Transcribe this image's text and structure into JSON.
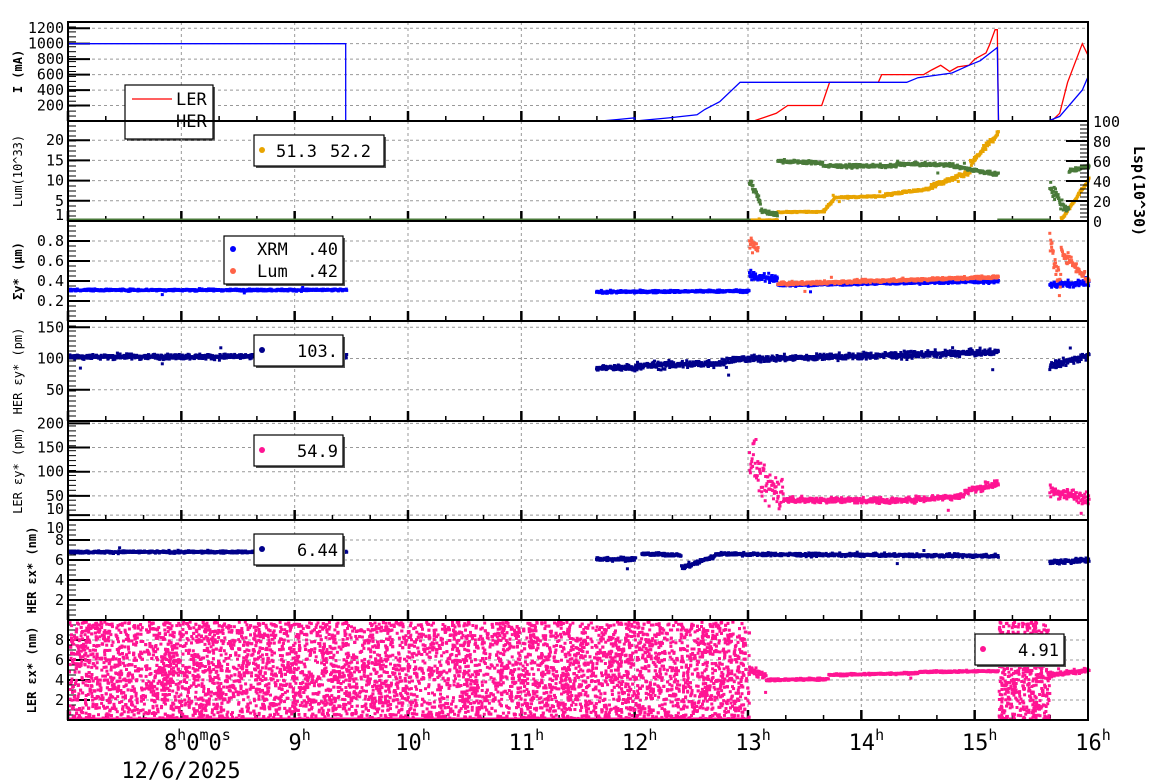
{
  "chart_data": [
    {
      "type": "line",
      "ylabel": "I (mA)",
      "ylim": [
        0,
        1280
      ],
      "yticks": [
        "200",
        "400",
        "600",
        "800",
        "1000",
        "1200"
      ],
      "legend": [
        {
          "name": "LER",
          "color": "#ff0000"
        },
        {
          "name": "HER",
          "color": "#0000ff"
        }
      ],
      "series": [
        {
          "name": "LER",
          "color": "#ff0000",
          "points": [
            [
              7,
              0
            ],
            [
              13.05,
              0
            ],
            [
              13.25,
              100
            ],
            [
              13.35,
              200
            ],
            [
              13.65,
              200
            ],
            [
              13.72,
              500
            ],
            [
              14.15,
              500
            ],
            [
              14.18,
              600
            ],
            [
              14.55,
              600
            ],
            [
              14.62,
              660
            ],
            [
              14.7,
              720
            ],
            [
              14.78,
              640
            ],
            [
              14.85,
              700
            ],
            [
              14.95,
              720
            ],
            [
              15.0,
              800
            ],
            [
              15.1,
              880
            ],
            [
              15.13,
              980
            ],
            [
              15.18,
              1180
            ],
            [
              15.2,
              1180
            ],
            [
              15.21,
              0
            ],
            [
              15.68,
              0
            ],
            [
              15.75,
              100
            ],
            [
              15.82,
              500
            ],
            [
              15.95,
              1000
            ],
            [
              16,
              850
            ]
          ]
        },
        {
          "name": "HER",
          "color": "#0000ff",
          "points": [
            [
              7,
              1000
            ],
            [
              9.45,
              1000
            ],
            [
              9.45,
              0
            ],
            [
              11.7,
              0
            ],
            [
              11.85,
              20
            ],
            [
              12.0,
              40
            ],
            [
              12.0,
              0
            ],
            [
              12.3,
              40
            ],
            [
              12.55,
              80
            ],
            [
              12.62,
              150
            ],
            [
              12.75,
              250
            ],
            [
              12.93,
              500
            ],
            [
              14.4,
              500
            ],
            [
              14.5,
              560
            ],
            [
              14.8,
              620
            ],
            [
              14.95,
              720
            ],
            [
              15.05,
              780
            ],
            [
              15.2,
              950
            ],
            [
              15.21,
              0
            ],
            [
              15.65,
              0
            ],
            [
              15.75,
              60
            ],
            [
              15.95,
              400
            ],
            [
              16,
              570
            ]
          ]
        }
      ]
    },
    {
      "type": "scatter",
      "ylabel": "Lum(10^33)",
      "ylim": [
        0,
        24.75
      ],
      "yticks": [
        "1",
        "5",
        "10",
        "15",
        "20"
      ],
      "y2label": "Lsp(10^30)",
      "y2lim": [
        0,
        100
      ],
      "y2ticks": [
        "0",
        "20",
        "40",
        "60",
        "80",
        "100"
      ],
      "legend_values": [
        "51.3",
        "52.2"
      ],
      "legend_color": "#e8a400",
      "series": [
        {
          "axis": "left",
          "color": "#e8a400",
          "segments": [
            [
              13.0,
              13.25,
              0.2,
              0.2,
              0.1
            ],
            [
              13.25,
              13.65,
              2.2,
              2.3,
              0.15
            ],
            [
              13.65,
              13.75,
              2.3,
              5.5,
              0.3
            ],
            [
              13.75,
              14.2,
              5.8,
              6.2,
              0.2
            ],
            [
              14.2,
              14.6,
              6.5,
              8,
              0.3
            ],
            [
              14.6,
              14.95,
              8.5,
              12,
              0.6
            ],
            [
              14.95,
              15.2,
              14,
              22,
              0.8
            ],
            [
              15.75,
              16,
              0.3,
              10.5,
              0.4
            ]
          ]
        },
        {
          "axis": "right",
          "color": "#4a7a3a",
          "segments": [
            [
              7,
              13,
              0,
              0,
              0
            ],
            [
              13.0,
              13.1,
              40,
              20,
              5
            ],
            [
              13.1,
              13.25,
              10,
              6,
              2
            ],
            [
              13.25,
              13.65,
              60,
              58,
              1.5
            ],
            [
              13.65,
              14.3,
              55,
              55,
              1.5
            ],
            [
              14.3,
              14.8,
              57,
              56,
              1.5
            ],
            [
              14.8,
              15.2,
              55,
              46,
              1.5
            ],
            [
              15.2,
              15.65,
              0,
              0,
              0
            ],
            [
              15.65,
              15.78,
              35,
              15,
              8
            ],
            [
              15.78,
              15.82,
              12,
              12,
              3
            ],
            [
              15.82,
              16,
              50,
              55,
              2
            ]
          ]
        }
      ]
    },
    {
      "type": "scatter",
      "ylabel": "Σy* (μm)",
      "ylim": [
        0,
        1.0
      ],
      "yticks": [
        "0.2",
        "0.4",
        "0.6",
        "0.8"
      ],
      "legend": [
        {
          "name": "XRM",
          "value": ".40",
          "color": "#0000ff"
        },
        {
          "name": "Lum",
          "value": ".42",
          "color": "#ff6347"
        }
      ],
      "series": [
        {
          "name": "XRM",
          "color": "#0000ff",
          "segments": [
            [
              7,
              9.45,
              0.31,
              0.31,
              0.01
            ],
            [
              11.65,
              13.0,
              0.29,
              0.3,
              0.012
            ],
            [
              13.0,
              13.25,
              0.45,
              0.42,
              0.05
            ],
            [
              13.25,
              15.2,
              0.36,
              0.4,
              0.015
            ],
            [
              15.65,
              16,
              0.36,
              0.38,
              0.03
            ]
          ]
        },
        {
          "name": "Lum",
          "color": "#ff6347",
          "segments": [
            [
              13.0,
              13.08,
              0.8,
              0.7,
              0.08
            ],
            [
              13.25,
              15.2,
              0.37,
              0.44,
              0.015
            ],
            [
              15.65,
              15.75,
              0.8,
              0.3,
              0.15
            ],
            [
              15.75,
              16,
              0.7,
              0.4,
              0.05
            ]
          ]
        }
      ]
    },
    {
      "type": "scatter",
      "ylabel": "HER εy* (pm)",
      "ylim": [
        0,
        160
      ],
      "yticks": [
        "50",
        "100",
        "150"
      ],
      "legend_value": "103.",
      "series": [
        {
          "color": "#00008b",
          "segments": [
            [
              7,
              9.45,
              103,
              103,
              4
            ],
            [
              11.65,
              12.0,
              85,
              85,
              5
            ],
            [
              12.0,
              12.8,
              88,
              93,
              6
            ],
            [
              12.8,
              15.2,
              98,
              110,
              5
            ],
            [
              15.65,
              16,
              88,
              105,
              6
            ]
          ]
        }
      ]
    },
    {
      "type": "scatter",
      "ylabel": "LER εy* (pm)",
      "ylim": [
        0,
        205
      ],
      "yticks": [
        "10",
        "50",
        "100",
        "150",
        "200"
      ],
      "legend_value": "54.9",
      "legend_color": "#ff1493",
      "series": [
        {
          "color": "#ff1493",
          "segments": [
            [
              13.0,
              13.1,
              140,
              90,
              40
            ],
            [
              13.1,
              13.3,
              70,
              60,
              35
            ],
            [
              13.3,
              14.3,
              42,
              40,
              6
            ],
            [
              14.3,
              14.9,
              40,
              50,
              6
            ],
            [
              14.9,
              15.2,
              60,
              75,
              7
            ],
            [
              15.65,
              16,
              60,
              45,
              12
            ]
          ]
        }
      ]
    },
    {
      "type": "scatter",
      "ylabel": "HER εx* (nm)",
      "ylim": [
        0,
        10
      ],
      "yticks": [
        "2",
        "4",
        "6",
        "8",
        "10"
      ],
      "legend_value": "6.44",
      "series": [
        {
          "color": "#00008b",
          "segments": [
            [
              7,
              9.45,
              6.8,
              6.8,
              0.12
            ],
            [
              11.65,
              12.0,
              6.1,
              6.1,
              0.2
            ],
            [
              12.05,
              12.4,
              6.6,
              6.5,
              0.15
            ],
            [
              12.4,
              12.7,
              5.2,
              6.4,
              0.25
            ],
            [
              12.7,
              15.2,
              6.6,
              6.4,
              0.15
            ],
            [
              15.65,
              16,
              5.8,
              6.0,
              0.25
            ]
          ]
        }
      ]
    },
    {
      "type": "scatter",
      "ylabel": "LER εx* (nm)",
      "ylim": [
        0,
        10
      ],
      "yticks": [
        "2",
        "4",
        "6",
        "8"
      ],
      "legend_value": "4.91",
      "legend_color": "#ff1493",
      "series": [
        {
          "color": "#ff1493",
          "segments": [
            [
              7,
              13,
              "random"
            ],
            [
              13.0,
              13.15,
              5,
              4.5,
              0.4
            ],
            [
              13.15,
              13.7,
              4.0,
              4.1,
              0.12
            ],
            [
              13.7,
              14.5,
              4.5,
              4.7,
              0.1
            ],
            [
              14.5,
              15.2,
              4.8,
              4.9,
              0.1
            ],
            [
              15.2,
              15.65,
              "random"
            ],
            [
              15.65,
              16,
              4.5,
              5.0,
              0.2
            ]
          ]
        }
      ]
    }
  ],
  "xaxis": {
    "range_hours": [
      7,
      16
    ],
    "ticks": [
      {
        "t": 8,
        "num": "8",
        "sup": "h",
        "num2": "0",
        "sup2": "m",
        "num3": "0",
        "sup3": "s"
      },
      {
        "t": 9,
        "num": "9",
        "sup": "h"
      },
      {
        "t": 10,
        "num": "10",
        "sup": "h"
      },
      {
        "t": 11,
        "num": "11",
        "sup": "h"
      },
      {
        "t": 12,
        "num": "12",
        "sup": "h"
      },
      {
        "t": 13,
        "num": "13",
        "sup": "h"
      },
      {
        "t": 14,
        "num": "14",
        "sup": "h"
      },
      {
        "t": 15,
        "num": "15",
        "sup": "h"
      },
      {
        "t": 16,
        "num": "16",
        "sup": "h"
      }
    ],
    "date": "12/6/2025"
  }
}
